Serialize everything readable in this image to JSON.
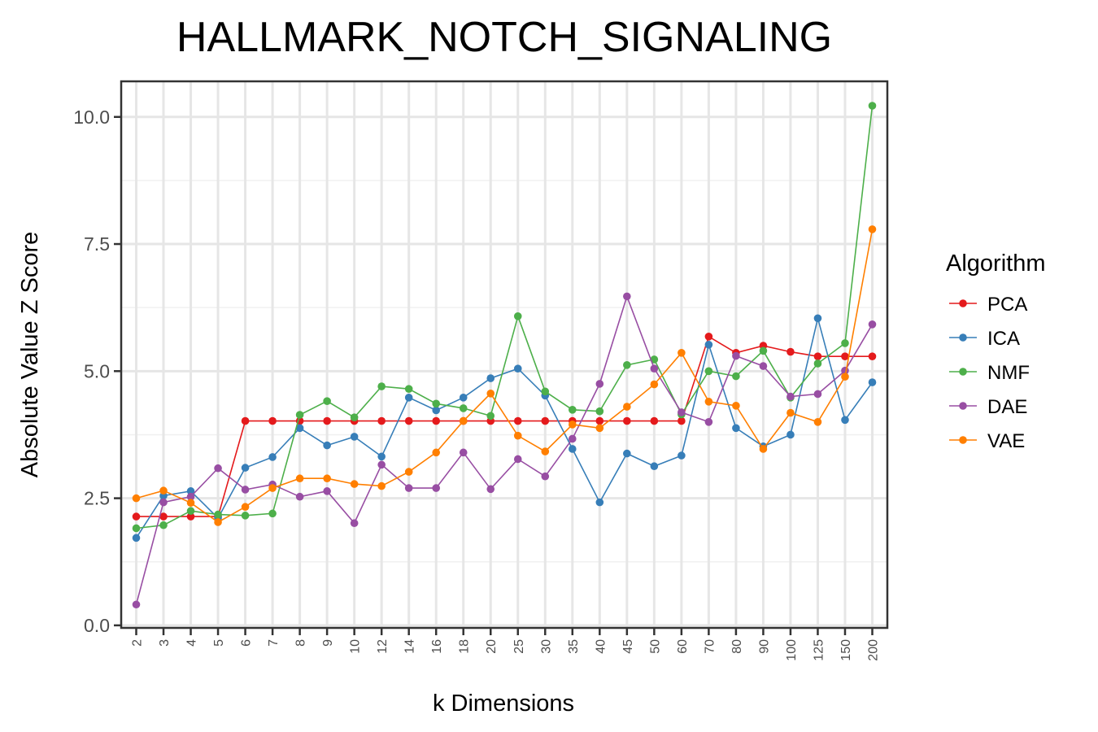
{
  "chart_data": {
    "type": "line",
    "title": "HALLMARK_NOTCH_SIGNALING",
    "xlabel": "k Dimensions",
    "ylabel": "Absolute Value Z Score",
    "x_scale": "categorical",
    "categories": [
      "2",
      "3",
      "4",
      "5",
      "6",
      "7",
      "8",
      "9",
      "10",
      "12",
      "14",
      "16",
      "18",
      "20",
      "25",
      "30",
      "35",
      "40",
      "45",
      "50",
      "60",
      "70",
      "80",
      "90",
      "100",
      "125",
      "150",
      "200"
    ],
    "ylim": [
      -0.05,
      10.7
    ],
    "yticks": [
      0.0,
      2.5,
      5.0,
      7.5,
      10.0
    ],
    "ytick_labels": [
      "0.0",
      "2.5",
      "5.0",
      "7.5",
      "10.0"
    ],
    "grid": true,
    "legend": {
      "title": "Algorithm",
      "position": "right"
    },
    "series": [
      {
        "name": "PCA",
        "color": "#e41a1c",
        "values": [
          2.14,
          2.14,
          2.14,
          2.14,
          4.02,
          4.02,
          4.02,
          4.02,
          4.02,
          4.02,
          4.02,
          4.02,
          4.02,
          4.02,
          4.02,
          4.02,
          4.02,
          4.02,
          4.02,
          4.02,
          4.02,
          5.68,
          5.36,
          5.5,
          5.38,
          5.29,
          5.29,
          5.29
        ]
      },
      {
        "name": "ICA",
        "color": "#377eb8",
        "values": [
          1.72,
          2.55,
          2.64,
          2.11,
          3.1,
          3.31,
          3.88,
          3.54,
          3.71,
          3.32,
          4.48,
          4.23,
          4.48,
          4.86,
          5.05,
          4.52,
          3.47,
          2.42,
          3.38,
          3.13,
          3.34,
          5.52,
          3.88,
          3.52,
          3.75,
          6.04,
          4.04,
          4.78
        ]
      },
      {
        "name": "NMF",
        "color": "#4daf4a",
        "values": [
          1.91,
          1.97,
          2.25,
          2.18,
          2.16,
          2.2,
          4.14,
          4.41,
          4.09,
          4.7,
          4.65,
          4.36,
          4.27,
          4.12,
          6.08,
          4.6,
          4.24,
          4.21,
          5.12,
          5.23,
          4.15,
          5.0,
          4.9,
          5.4,
          4.48,
          5.15,
          5.55,
          10.22
        ]
      },
      {
        "name": "DAE",
        "color": "#984ea3",
        "values": [
          0.41,
          2.42,
          2.53,
          3.09,
          2.67,
          2.77,
          2.53,
          2.64,
          2.01,
          3.16,
          2.7,
          2.7,
          3.4,
          2.68,
          3.27,
          2.93,
          3.67,
          4.75,
          6.47,
          5.05,
          4.19,
          4.0,
          5.3,
          5.1,
          4.5,
          4.55,
          5.01,
          5.92
        ]
      },
      {
        "name": "VAE",
        "color": "#ff7f00",
        "values": [
          2.5,
          2.65,
          2.41,
          2.03,
          2.33,
          2.7,
          2.89,
          2.89,
          2.78,
          2.74,
          3.02,
          3.4,
          4.02,
          4.56,
          3.73,
          3.42,
          3.95,
          3.88,
          4.3,
          4.74,
          5.36,
          4.4,
          4.32,
          3.47,
          4.18,
          4.0,
          4.89,
          7.79
        ]
      }
    ]
  }
}
